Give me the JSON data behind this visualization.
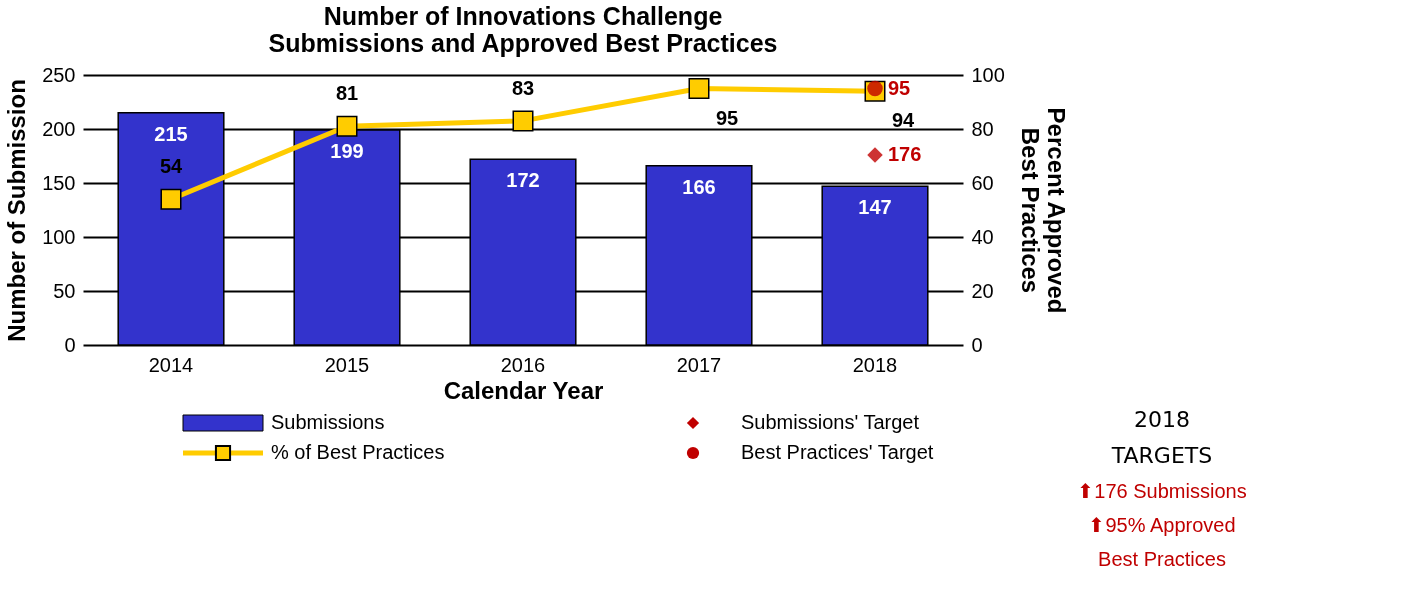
{
  "chart_data": {
    "type": "bar",
    "title": "Number of Innovations Challenge Submissions and Approved Best Practices",
    "xlabel": "Calendar Year",
    "ylabel": "Number of Submission",
    "y2label": "Percent Approved Best Practices",
    "categories": [
      "2014",
      "2015",
      "2016",
      "2017",
      "2018"
    ],
    "series": [
      {
        "name": "Submissions",
        "type": "bar",
        "color": "#3333cc",
        "values": [
          215,
          199,
          172,
          166,
          147
        ]
      },
      {
        "name": "% of Best Practices",
        "type": "line",
        "axis": "y2",
        "color": "#ffcc00",
        "marker": "square",
        "line_style": "solid",
        "values": [
          54,
          81,
          83,
          95,
          94
        ]
      },
      {
        "name": "Submissions' Target",
        "type": "scatter",
        "color": "#c00000",
        "marker": "diamond",
        "values": [
          null,
          null,
          null,
          null,
          176
        ]
      },
      {
        "name": "Best Practices' Target",
        "type": "scatter",
        "axis": "y2",
        "color": "#c00000",
        "marker": "circle",
        "values": [
          null,
          null,
          null,
          null,
          95
        ]
      }
    ],
    "ylim": [
      0,
      250
    ],
    "yticks": [
      0,
      50,
      100,
      150,
      200,
      250
    ],
    "y2lim": [
      0,
      100
    ],
    "y2ticks": [
      0,
      20,
      40,
      60,
      80,
      100
    ],
    "grid": "y",
    "legend": "bottom",
    "data_labels": true,
    "annotations": [
      "2018 TARGETS",
      "⬆176 Submissions",
      "⬆95% Approved Best Practices"
    ]
  }
}
